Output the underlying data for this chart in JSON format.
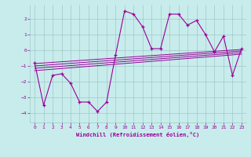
{
  "xlabel": "Windchill (Refroidissement éolien,°C)",
  "xlim": [
    -0.5,
    23.5
  ],
  "ylim": [
    -4.6,
    2.9
  ],
  "yticks": [
    2,
    1,
    0,
    -1,
    -2,
    -3,
    -4
  ],
  "xticks": [
    0,
    1,
    2,
    3,
    4,
    5,
    6,
    7,
    8,
    9,
    10,
    11,
    12,
    13,
    14,
    15,
    16,
    17,
    18,
    19,
    20,
    21,
    22,
    23
  ],
  "bg_color": "#c8ecec",
  "grid_color": "#a0c8c8",
  "line_color": "#990099",
  "series1_x": [
    0,
    1,
    2,
    3,
    4,
    5,
    6,
    7,
    8,
    9,
    10,
    11,
    12,
    13,
    14,
    15,
    16,
    17,
    18,
    19,
    20,
    21,
    22,
    23
  ],
  "series1_y": [
    -0.8,
    -3.5,
    -1.6,
    -1.5,
    -2.1,
    -3.3,
    -3.3,
    -3.9,
    -3.3,
    -0.3,
    2.5,
    2.3,
    1.5,
    0.1,
    0.1,
    2.3,
    2.3,
    1.6,
    1.9,
    1.0,
    -0.1,
    0.9,
    -1.6,
    0.1
  ],
  "trend1_x": [
    0,
    23
  ],
  "trend1_y": [
    -0.85,
    0.05
  ],
  "trend2_x": [
    0,
    23
  ],
  "trend2_y": [
    -1.0,
    -0.05
  ],
  "trend3_x": [
    0,
    23
  ],
  "trend3_y": [
    -1.15,
    -0.15
  ],
  "trend4_x": [
    0,
    23
  ],
  "trend4_y": [
    -1.3,
    -0.25
  ]
}
